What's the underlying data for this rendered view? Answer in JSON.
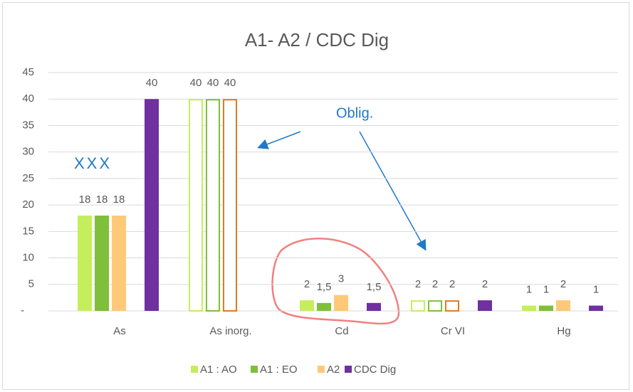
{
  "chart_data": {
    "type": "bar",
    "title": "A1- A2  / CDC Dig",
    "categories": [
      "As",
      "As inorg.",
      "Cd",
      "Cr VI",
      "Hg"
    ],
    "series": [
      {
        "name": "A1 : AO",
        "color": "#c5ee5c",
        "values": [
          18,
          40,
          2,
          2,
          1
        ],
        "value_labels": [
          "18",
          "40",
          "2",
          "2",
          "1"
        ],
        "hollow": [
          false,
          true,
          false,
          true,
          false
        ]
      },
      {
        "name": "A1 : EO",
        "color": "#7fbf3a",
        "values": [
          18,
          40,
          1.5,
          2,
          1
        ],
        "value_labels": [
          "18",
          "40",
          "1,5",
          "2",
          "1"
        ],
        "hollow": [
          false,
          true,
          false,
          true,
          false
        ]
      },
      {
        "name": "A2",
        "color": "#ffc978",
        "stroke": "#e07b20",
        "values": [
          18,
          40,
          3,
          2,
          2
        ],
        "value_labels": [
          "18",
          "40",
          "3",
          "2",
          "2"
        ],
        "hollow": [
          false,
          true,
          false,
          true,
          false
        ]
      },
      {
        "name": "CDC Dig",
        "color": "#7030a0",
        "values": [
          40,
          null,
          1.5,
          2,
          1
        ],
        "value_labels": [
          "40",
          null,
          "1,5",
          "2",
          "1"
        ],
        "hollow": [
          false,
          false,
          false,
          false,
          false
        ]
      }
    ],
    "ylim": [
      0,
      45
    ],
    "yticks": [
      {
        "value": 0,
        "label": "-"
      },
      5,
      10,
      15,
      20,
      25,
      30,
      35,
      40,
      45
    ],
    "grid": true,
    "legend": "bottom",
    "annotations": [
      "XXX",
      "Oblig."
    ]
  }
}
